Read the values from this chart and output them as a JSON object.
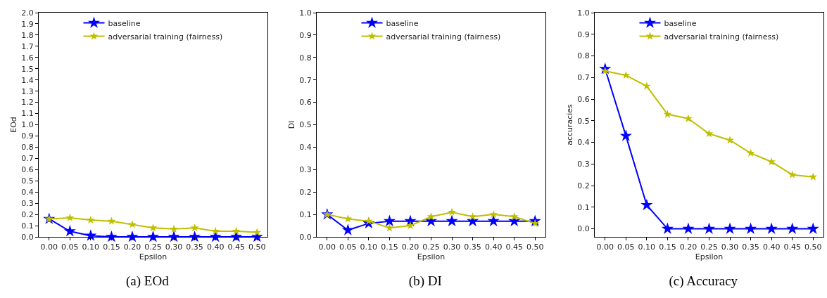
{
  "chart_data": [
    {
      "type": "line",
      "title": "(a) EOd",
      "xlabel": "Epsilon",
      "ylabel": "EOd",
      "x": [
        0,
        0.05,
        0.1,
        0.15,
        0.2,
        0.25,
        0.3,
        0.35,
        0.4,
        0.45,
        0.5
      ],
      "series": [
        {
          "name": "baseline",
          "color": "#0000ff",
          "values": [
            0.16,
            0.05,
            0.01,
            0,
            0,
            0,
            0,
            0,
            0,
            0,
            0
          ]
        },
        {
          "name": "adversarial training (fairness)",
          "color": "#bfbf00",
          "values": [
            0.16,
            0.17,
            0.15,
            0.14,
            0.11,
            0.08,
            0.07,
            0.08,
            0.05,
            0.05,
            0.04
          ]
        }
      ],
      "xlim": [
        -0.025,
        0.525
      ],
      "xticks": [
        {
          "value": 0,
          "label": "0.00"
        },
        {
          "value": 0.05,
          "label": "0.05"
        },
        {
          "value": 0.1,
          "label": "0.10"
        },
        {
          "value": 0.15,
          "label": "0.15"
        },
        {
          "value": 0.2,
          "label": "0.20"
        },
        {
          "value": 0.25,
          "label": "0.25"
        },
        {
          "value": 0.3,
          "label": "0.30"
        },
        {
          "value": 0.35,
          "label": "0.35"
        },
        {
          "value": 0.4,
          "label": "0.40"
        },
        {
          "value": 0.45,
          "label": "0.45"
        },
        {
          "value": 0.5,
          "label": "0.50"
        }
      ],
      "ylim": [
        0,
        2.0
      ],
      "yticks": [
        {
          "value": 0,
          "label": "0.0"
        },
        0.1,
        0.2,
        0.3,
        0.4,
        0.5,
        0.6,
        0.7,
        0.8,
        0.9,
        {
          "value": 1,
          "label": "1.0"
        },
        1.1,
        1.2,
        1.3,
        1.4,
        1.5,
        1.6,
        1.7,
        1.8,
        1.9,
        {
          "value": 2,
          "label": "2.0"
        }
      ],
      "legend": "top",
      "marker": "star",
      "grid": false
    },
    {
      "type": "line",
      "title": "(b) DI",
      "xlabel": "Epsilon",
      "ylabel": "DI",
      "x": [
        0,
        0.05,
        0.1,
        0.15,
        0.2,
        0.25,
        0.3,
        0.35,
        0.4,
        0.45,
        0.5
      ],
      "series": [
        {
          "name": "baseline",
          "color": "#0000ff",
          "values": [
            0.1,
            0.03,
            0.06,
            0.07,
            0.07,
            0.07,
            0.07,
            0.07,
            0.07,
            0.07,
            0.07
          ]
        },
        {
          "name": "adversarial training (fairness)",
          "color": "#bfbf00",
          "values": [
            0.1,
            0.08,
            0.07,
            0.04,
            0.05,
            0.09,
            0.11,
            0.09,
            0.1,
            0.09,
            0.06
          ]
        }
      ],
      "xlim": [
        -0.025,
        0.525
      ],
      "xticks": [
        {
          "value": 0,
          "label": "0.00"
        },
        {
          "value": 0.05,
          "label": "0.05"
        },
        {
          "value": 0.1,
          "label": "0.10"
        },
        {
          "value": 0.15,
          "label": "0.15"
        },
        {
          "value": 0.2,
          "label": "0.20"
        },
        {
          "value": 0.25,
          "label": "0.25"
        },
        {
          "value": 0.3,
          "label": "0.30"
        },
        {
          "value": 0.35,
          "label": "0.35"
        },
        {
          "value": 0.4,
          "label": "0.40"
        },
        {
          "value": 0.45,
          "label": "0.45"
        },
        {
          "value": 0.5,
          "label": "0.50"
        }
      ],
      "ylim": [
        0,
        1.0
      ],
      "yticks": [
        {
          "value": 0,
          "label": "0.0"
        },
        0.1,
        0.2,
        0.3,
        0.4,
        0.5,
        0.6,
        0.7,
        0.8,
        0.9,
        {
          "value": 1,
          "label": "1.0"
        }
      ],
      "legend": "top",
      "marker": "star",
      "grid": false
    },
    {
      "type": "line",
      "title": "(c) Accuracy",
      "xlabel": "Epsilon",
      "ylabel": "accuracies",
      "x": [
        0,
        0.05,
        0.1,
        0.15,
        0.2,
        0.25,
        0.3,
        0.35,
        0.4,
        0.45,
        0.5
      ],
      "series": [
        {
          "name": "baseline",
          "color": "#0000ff",
          "values": [
            0.74,
            0.43,
            0.11,
            0,
            0,
            0,
            0,
            0,
            0,
            0,
            0
          ]
        },
        {
          "name": "adversarial training (fairness)",
          "color": "#bfbf00",
          "values": [
            0.73,
            0.71,
            0.66,
            0.53,
            0.51,
            0.44,
            0.41,
            0.35,
            0.31,
            0.25,
            0.24
          ]
        }
      ],
      "xlim": [
        -0.025,
        0.525
      ],
      "xticks": [
        {
          "value": 0,
          "label": "0.00"
        },
        {
          "value": 0.05,
          "label": "0.05"
        },
        {
          "value": 0.1,
          "label": "0.10"
        },
        {
          "value": 0.15,
          "label": "0.15"
        },
        {
          "value": 0.2,
          "label": "0.20"
        },
        {
          "value": 0.25,
          "label": "0.25"
        },
        {
          "value": 0.3,
          "label": "0.30"
        },
        {
          "value": 0.35,
          "label": "0.35"
        },
        {
          "value": 0.4,
          "label": "0.40"
        },
        {
          "value": 0.45,
          "label": "0.45"
        },
        {
          "value": 0.5,
          "label": "0.50"
        }
      ],
      "ylim": [
        -0.037,
        1.0
      ],
      "yticks": [
        {
          "value": 0,
          "label": "0.0"
        },
        0.1,
        0.2,
        0.3,
        0.4,
        0.5,
        0.6,
        0.7,
        0.8,
        0.9,
        {
          "value": 1,
          "label": "1.0"
        }
      ],
      "legend": "top",
      "marker": "star",
      "grid": false
    }
  ]
}
